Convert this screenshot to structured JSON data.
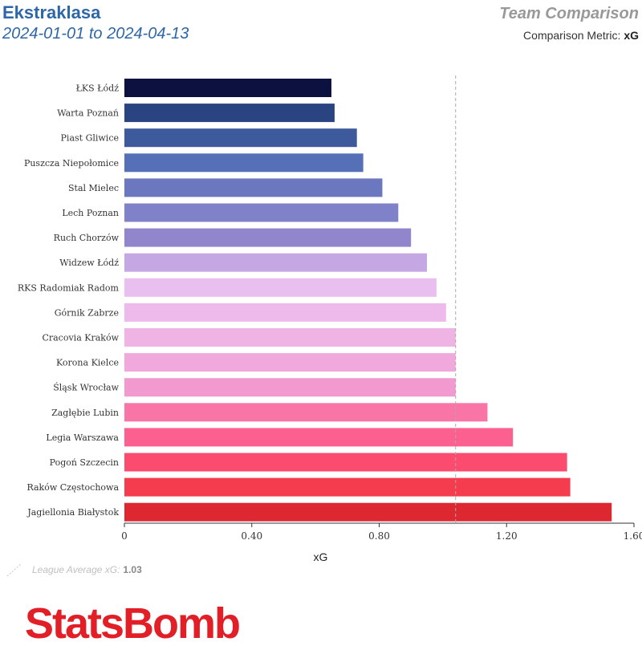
{
  "header": {
    "title": "Ekstraklasa",
    "dates": "2024-01-01 to 2024-04-13",
    "right_title": "Team Comparison",
    "metric_label": "Comparison Metric:",
    "metric_value": "xG"
  },
  "legend": {
    "label": "League Average xG:",
    "value": "1.03"
  },
  "logo": "StatsBomb",
  "chart_data": {
    "type": "bar",
    "orientation": "horizontal",
    "xlabel": "xG",
    "xlim": [
      0,
      1.6
    ],
    "xticks": [
      "0",
      "0.40",
      "0.80",
      "1.20",
      "1.60"
    ],
    "xtick_values": [
      0,
      0.4,
      0.8,
      1.2,
      1.6
    ],
    "reference_line": {
      "value": 1.04,
      "style": "dashed"
    },
    "categories": [
      "ŁKS Łódź",
      "Warta Poznań",
      "Piast Gliwice",
      "Puszcza Niepołomice",
      "Stal Mielec",
      "Lech Poznan",
      "Ruch Chorzów",
      "Widzew Łódź",
      "RKS Radomiak Radom",
      "Górnik Zabrze",
      "Cracovia Kraków",
      "Korona Kielce",
      "Śląsk Wrocław",
      "Zagłębie Lubin",
      "Legia Warszawa",
      "Pogoń Szczecin",
      "Raków Częstochowa",
      "Jagiellonia Białystok"
    ],
    "values": [
      0.65,
      0.66,
      0.73,
      0.75,
      0.81,
      0.86,
      0.9,
      0.95,
      0.98,
      1.01,
      1.04,
      1.04,
      1.04,
      1.14,
      1.22,
      1.39,
      1.4,
      1.53
    ],
    "colors": [
      "#0d1140",
      "#2a4482",
      "#3d5b9c",
      "#5670b8",
      "#6b78c0",
      "#7f82c8",
      "#9186cb",
      "#c5a8e3",
      "#e8bfee",
      "#eebaeb",
      "#efb3e4",
      "#f0a8dd",
      "#f29ad0",
      "#f975a6",
      "#fb6090",
      "#fb4c70",
      "#f43c4e",
      "#dd2832"
    ]
  }
}
